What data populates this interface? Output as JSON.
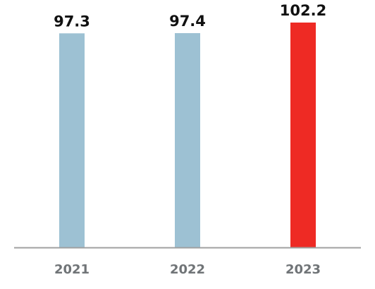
{
  "chart_data": {
    "type": "bar",
    "categories": [
      "2021",
      "2022",
      "2023"
    ],
    "values": [
      97.3,
      97.4,
      102.2
    ],
    "value_labels": [
      "97.3",
      "97.4",
      "102.2"
    ],
    "title": "",
    "xlabel": "",
    "ylabel": "",
    "ylim": [
      0,
      102.2
    ],
    "grid": false,
    "colors": {
      "default_bar": "#9dc1d3",
      "highlight_bar": "#ee2a24",
      "axis": "#a0a0a0",
      "tick_text": "#707477",
      "label_text": "#111111"
    },
    "highlight_index": 2
  }
}
